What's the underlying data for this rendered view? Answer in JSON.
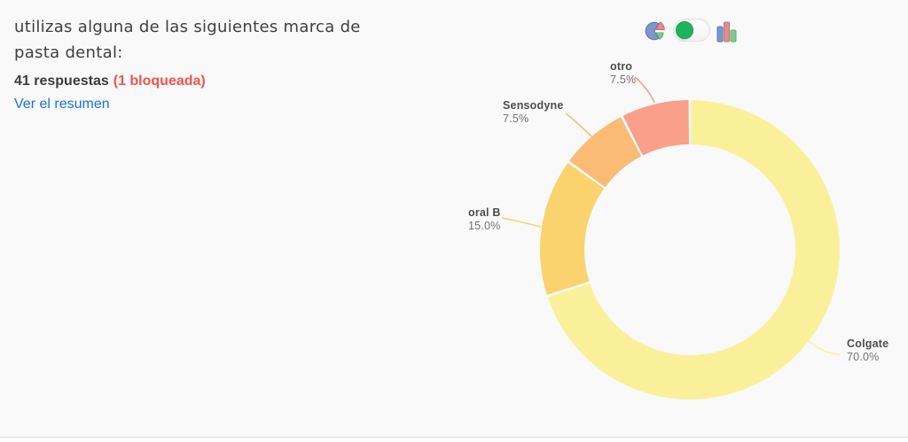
{
  "header": {
    "question_title": "utilizas alguna de las siguientes marca de pasta dental:",
    "responses_count": "41 respuestas",
    "blocked_note": "(1 bloqueada)",
    "summary_link": "Ver el resumen"
  },
  "colors": {
    "accent_red": "#f2544b",
    "link_blue": "#1a73e8",
    "toggle_green": "#1fb25f",
    "icon_blue": "#7e96cb",
    "icon_blue_dark": "#5b76b5",
    "icon_pink": "#dd8f92",
    "icon_pink_dark": "#c66f74",
    "icon_green": "#7fca8d",
    "icon_green_dark": "#58b169"
  },
  "chart_data": {
    "type": "pie",
    "subtype": "donut",
    "title": "utilizas alguna de las siguientes marca de pasta dental:",
    "start_angle_deg": 0,
    "direction": "clockwise",
    "legend": "none (outside labels with leader lines)",
    "slices": [
      {
        "label": "Colgate",
        "value_pct": 70.0,
        "value_label": "70.0%",
        "color": "#fbf09a"
      },
      {
        "label": "oral B",
        "value_pct": 15.0,
        "value_label": "15.0%",
        "color": "#fad26e"
      },
      {
        "label": "Sensodyne",
        "value_pct": 7.5,
        "value_label": "7.5%",
        "color": "#fbbb74"
      },
      {
        "label": "otro",
        "value_pct": 7.5,
        "value_label": "7.5%",
        "color": "#f99f8a"
      }
    ]
  }
}
